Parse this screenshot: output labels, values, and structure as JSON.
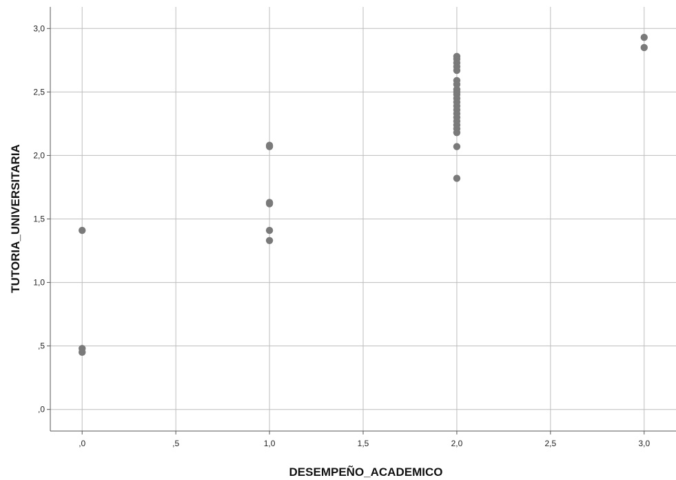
{
  "chart_data": {
    "type": "scatter",
    "title": "",
    "xlabel": "DESEMPEÑO_ACADEMICO",
    "ylabel": "TUTORIA_UNIVERSITARIA",
    "xlim": [
      -0.17,
      3.17
    ],
    "ylim": [
      -0.17,
      3.17
    ],
    "x_ticks": [
      0,
      0.5,
      1,
      1.5,
      2,
      2.5,
      3
    ],
    "x_tick_labels": [
      ",0",
      ",5",
      "1,0",
      "1,5",
      "2,0",
      "2,5",
      "3,0"
    ],
    "y_ticks": [
      0,
      0.5,
      1,
      1.5,
      2,
      2.5,
      3
    ],
    "y_tick_labels": [
      ",0",
      ",5",
      "1,0",
      "1,5",
      "2,0",
      "2,5",
      "3,0"
    ],
    "grid": true,
    "point_color": "#7a7a7a",
    "points": [
      {
        "x": 0,
        "y": 1.41
      },
      {
        "x": 0,
        "y": 0.48
      },
      {
        "x": 0,
        "y": 0.45
      },
      {
        "x": 1,
        "y": 2.08
      },
      {
        "x": 1,
        "y": 2.07
      },
      {
        "x": 1,
        "y": 1.63
      },
      {
        "x": 1,
        "y": 1.62
      },
      {
        "x": 1,
        "y": 1.41
      },
      {
        "x": 1,
        "y": 1.33
      },
      {
        "x": 2,
        "y": 2.78
      },
      {
        "x": 2,
        "y": 2.76
      },
      {
        "x": 2,
        "y": 2.73
      },
      {
        "x": 2,
        "y": 2.7
      },
      {
        "x": 2,
        "y": 2.67
      },
      {
        "x": 2,
        "y": 2.59
      },
      {
        "x": 2,
        "y": 2.56
      },
      {
        "x": 2,
        "y": 2.52
      },
      {
        "x": 2,
        "y": 2.5
      },
      {
        "x": 2,
        "y": 2.48
      },
      {
        "x": 2,
        "y": 2.45
      },
      {
        "x": 2,
        "y": 2.42
      },
      {
        "x": 2,
        "y": 2.39
      },
      {
        "x": 2,
        "y": 2.36
      },
      {
        "x": 2,
        "y": 2.33
      },
      {
        "x": 2,
        "y": 2.3
      },
      {
        "x": 2,
        "y": 2.27
      },
      {
        "x": 2,
        "y": 2.24
      },
      {
        "x": 2,
        "y": 2.21
      },
      {
        "x": 2,
        "y": 2.18
      },
      {
        "x": 2,
        "y": 2.07
      },
      {
        "x": 2,
        "y": 1.82
      },
      {
        "x": 3,
        "y": 2.93
      },
      {
        "x": 3,
        "y": 2.85
      }
    ]
  }
}
